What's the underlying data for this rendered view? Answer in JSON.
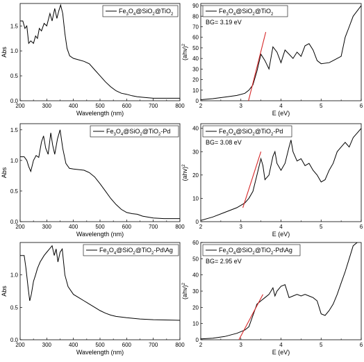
{
  "chart_data": [
    {
      "type": "line",
      "panel": "abs-1",
      "xlabel": "Wavelength (nm)",
      "ylabel": "Abs",
      "xlim": [
        200,
        800
      ],
      "ylim": [
        0.0,
        1.95
      ],
      "xticks": [
        200,
        300,
        400,
        500,
        600,
        700,
        800
      ],
      "yticks": [
        0.0,
        0.5,
        1.0,
        1.5
      ],
      "legend_position": "top-right",
      "series": [
        {
          "name": "Fe3O4@SiO2@TiO2",
          "color": "#000000",
          "points": [
            [
              200,
              1.6
            ],
            [
              210,
              1.6
            ],
            [
              218,
              1.45
            ],
            [
              225,
              1.5
            ],
            [
              232,
              1.15
            ],
            [
              240,
              1.2
            ],
            [
              250,
              1.15
            ],
            [
              258,
              1.3
            ],
            [
              265,
              1.25
            ],
            [
              272,
              1.45
            ],
            [
              280,
              1.4
            ],
            [
              290,
              1.55
            ],
            [
              300,
              1.5
            ],
            [
              312,
              1.75
            ],
            [
              320,
              1.6
            ],
            [
              330,
              1.85
            ],
            [
              338,
              1.65
            ],
            [
              345,
              1.8
            ],
            [
              352,
              1.92
            ],
            [
              360,
              1.75
            ],
            [
              368,
              1.35
            ],
            [
              376,
              1.05
            ],
            [
              386,
              0.9
            ],
            [
              400,
              0.85
            ],
            [
              420,
              0.82
            ],
            [
              440,
              0.79
            ],
            [
              460,
              0.74
            ],
            [
              480,
              0.62
            ],
            [
              500,
              0.5
            ],
            [
              520,
              0.38
            ],
            [
              540,
              0.28
            ],
            [
              560,
              0.2
            ],
            [
              580,
              0.15
            ],
            [
              600,
              0.13
            ],
            [
              620,
              0.1
            ],
            [
              640,
              0.08
            ],
            [
              660,
              0.07
            ],
            [
              700,
              0.05
            ],
            [
              740,
              0.05
            ],
            [
              800,
              0.05
            ]
          ]
        }
      ]
    },
    {
      "type": "line",
      "panel": "tauc-1",
      "xlabel": "E (eV)",
      "ylabel": "(ahv)",
      "ylabel_sup": "2",
      "xlim": [
        2,
        6
      ],
      "ylim": [
        0,
        92
      ],
      "xticks": [
        2,
        3,
        4,
        5,
        6
      ],
      "yticks": [
        0,
        10,
        20,
        30,
        40,
        50,
        60,
        70,
        80,
        90
      ],
      "annotation": "BG= 3.19 eV",
      "legend_position": "top-left",
      "series": [
        {
          "name": "Fe3O4@SiO2@TiO2",
          "color": "#000000",
          "points": [
            [
              2.0,
              1
            ],
            [
              2.3,
              2
            ],
            [
              2.6,
              3.5
            ],
            [
              2.9,
              5
            ],
            [
              3.1,
              7
            ],
            [
              3.2,
              10
            ],
            [
              3.3,
              15
            ],
            [
              3.4,
              28
            ],
            [
              3.5,
              44
            ],
            [
              3.6,
              38
            ],
            [
              3.7,
              30
            ],
            [
              3.8,
              51
            ],
            [
              3.9,
              46
            ],
            [
              4.0,
              36
            ],
            [
              4.1,
              48
            ],
            [
              4.2,
              44
            ],
            [
              4.3,
              40
            ],
            [
              4.4,
              46
            ],
            [
              4.5,
              42
            ],
            [
              4.6,
              52
            ],
            [
              4.7,
              54
            ],
            [
              4.8,
              48
            ],
            [
              4.9,
              38
            ],
            [
              5.0,
              35
            ],
            [
              5.2,
              36
            ],
            [
              5.3,
              38
            ],
            [
              5.5,
              42
            ],
            [
              5.6,
              60
            ],
            [
              5.7,
              70
            ],
            [
              5.8,
              80
            ],
            [
              5.9,
              85
            ],
            [
              6.0,
              90
            ]
          ]
        },
        {
          "name": "fit",
          "color": "#d62728",
          "points": [
            [
              3.19,
              0
            ],
            [
              3.62,
              65
            ]
          ]
        }
      ]
    },
    {
      "type": "line",
      "panel": "abs-2",
      "xlabel": "Wavelength (nm)",
      "ylabel": "Abs",
      "xlim": [
        200,
        800
      ],
      "ylim": [
        0.0,
        1.6
      ],
      "xticks": [
        200,
        300,
        400,
        500,
        600,
        700,
        800
      ],
      "yticks": [
        0.0,
        0.5,
        1.0,
        1.5
      ],
      "legend_position": "top-right",
      "series": [
        {
          "name": "Fe3O4@SiO2@TiO2-Pd",
          "color": "#000000",
          "points": [
            [
              200,
              1.06
            ],
            [
              215,
              1.06
            ],
            [
              225,
              1.0
            ],
            [
              232,
              0.9
            ],
            [
              240,
              0.82
            ],
            [
              250,
              1.0
            ],
            [
              260,
              1.08
            ],
            [
              270,
              1.05
            ],
            [
              280,
              1.3
            ],
            [
              288,
              1.4
            ],
            [
              296,
              1.2
            ],
            [
              305,
              1.1
            ],
            [
              315,
              1.45
            ],
            [
              322,
              1.25
            ],
            [
              330,
              1.1
            ],
            [
              340,
              1.35
            ],
            [
              350,
              1.5
            ],
            [
              360,
              1.2
            ],
            [
              372,
              0.95
            ],
            [
              385,
              0.87
            ],
            [
              400,
              0.86
            ],
            [
              420,
              0.85
            ],
            [
              440,
              0.84
            ],
            [
              460,
              0.8
            ],
            [
              480,
              0.73
            ],
            [
              500,
              0.62
            ],
            [
              520,
              0.5
            ],
            [
              540,
              0.38
            ],
            [
              560,
              0.28
            ],
            [
              580,
              0.2
            ],
            [
              600,
              0.15
            ],
            [
              620,
              0.13
            ],
            [
              640,
              0.12
            ],
            [
              660,
              0.09
            ],
            [
              700,
              0.06
            ],
            [
              740,
              0.05
            ],
            [
              800,
              0.05
            ]
          ]
        }
      ]
    },
    {
      "type": "line",
      "panel": "tauc-2",
      "xlabel": "E (eV)",
      "ylabel": "(ahv)",
      "ylabel_sup": "2",
      "xlim": [
        2,
        6
      ],
      "ylim": [
        0,
        42
      ],
      "xticks": [
        2,
        3,
        4,
        5,
        6
      ],
      "yticks": [
        0,
        10,
        20,
        30,
        40
      ],
      "annotation": "BG= 3.08 eV",
      "legend_position": "top-left",
      "series": [
        {
          "name": "Fe3O4@SiO2@TiO2-Pd",
          "color": "#000000",
          "points": [
            [
              2.0,
              0.5
            ],
            [
              2.3,
              2
            ],
            [
              2.6,
              4
            ],
            [
              2.9,
              6
            ],
            [
              3.1,
              8
            ],
            [
              3.2,
              10
            ],
            [
              3.3,
              13
            ],
            [
              3.4,
              20
            ],
            [
              3.5,
              27
            ],
            [
              3.55,
              24
            ],
            [
              3.6,
              18
            ],
            [
              3.7,
              20
            ],
            [
              3.8,
              28
            ],
            [
              3.85,
              30
            ],
            [
              3.9,
              25
            ],
            [
              4.0,
              22
            ],
            [
              4.1,
              25
            ],
            [
              4.2,
              32
            ],
            [
              4.25,
              35
            ],
            [
              4.3,
              30
            ],
            [
              4.4,
              26
            ],
            [
              4.5,
              27
            ],
            [
              4.6,
              24
            ],
            [
              4.7,
              25
            ],
            [
              4.8,
              22
            ],
            [
              4.9,
              20
            ],
            [
              5.0,
              17
            ],
            [
              5.1,
              18
            ],
            [
              5.2,
              22
            ],
            [
              5.3,
              25
            ],
            [
              5.4,
              30
            ],
            [
              5.5,
              32
            ],
            [
              5.6,
              34
            ],
            [
              5.7,
              32
            ],
            [
              5.8,
              36
            ],
            [
              5.9,
              38
            ],
            [
              6.0,
              40
            ]
          ]
        },
        {
          "name": "fit",
          "color": "#d62728",
          "points": [
            [
              3.05,
              6
            ],
            [
              3.5,
              30
            ]
          ]
        }
      ]
    },
    {
      "type": "line",
      "panel": "abs-3",
      "xlabel": "Wavelength (nm)",
      "ylabel": "Abs",
      "xlim": [
        200,
        800
      ],
      "ylim": [
        0.0,
        1.5
      ],
      "xticks": [
        200,
        300,
        400,
        500,
        600,
        700,
        800
      ],
      "yticks": [
        0.0,
        0.5,
        1.0
      ],
      "legend_position": "top-right",
      "series": [
        {
          "name": "Fe3O4@SiO2@TiO2-Pd\\Ag",
          "color": "#000000",
          "points": [
            [
              200,
              1.3
            ],
            [
              215,
              1.3
            ],
            [
              222,
              1.1
            ],
            [
              230,
              0.8
            ],
            [
              236,
              0.6
            ],
            [
              242,
              0.7
            ],
            [
              250,
              0.9
            ],
            [
              258,
              1.0
            ],
            [
              265,
              1.1
            ],
            [
              275,
              1.2
            ],
            [
              290,
              1.3
            ],
            [
              300,
              1.35
            ],
            [
              310,
              1.4
            ],
            [
              320,
              1.45
            ],
            [
              328,
              1.3
            ],
            [
              335,
              1.4
            ],
            [
              342,
              1.2
            ],
            [
              350,
              1.35
            ],
            [
              358,
              1.4
            ],
            [
              368,
              1.0
            ],
            [
              380,
              0.82
            ],
            [
              400,
              0.7
            ],
            [
              420,
              0.65
            ],
            [
              440,
              0.6
            ],
            [
              460,
              0.55
            ],
            [
              480,
              0.5
            ],
            [
              500,
              0.45
            ],
            [
              520,
              0.41
            ],
            [
              540,
              0.38
            ],
            [
              560,
              0.36
            ],
            [
              600,
              0.34
            ],
            [
              650,
              0.32
            ],
            [
              700,
              0.31
            ],
            [
              800,
              0.3
            ]
          ]
        }
      ]
    },
    {
      "type": "line",
      "panel": "tauc-3",
      "xlabel": "E (eV)",
      "ylabel": "(ahv)",
      "ylabel_sup": "2",
      "xlim": [
        2,
        6
      ],
      "ylim": [
        0,
        60
      ],
      "xticks": [
        2,
        3,
        4,
        5,
        6
      ],
      "yticks": [
        0,
        10,
        20,
        30,
        40,
        50,
        60
      ],
      "annotation": "BG= 2.95 eV",
      "legend_position": "top-left",
      "series": [
        {
          "name": "Fe3O4@SiO2@TiO2-Pd\\Ag",
          "color": "#000000",
          "points": [
            [
              2.0,
              0.5
            ],
            [
              2.3,
              1
            ],
            [
              2.6,
              2
            ],
            [
              2.9,
              4
            ],
            [
              3.1,
              6
            ],
            [
              3.2,
              8
            ],
            [
              3.3,
              15
            ],
            [
              3.4,
              22
            ],
            [
              3.5,
              24
            ],
            [
              3.6,
              26
            ],
            [
              3.7,
              28
            ],
            [
              3.8,
              32
            ],
            [
              3.85,
              27
            ],
            [
              3.9,
              30
            ],
            [
              4.0,
              33
            ],
            [
              4.1,
              34
            ],
            [
              4.2,
              26
            ],
            [
              4.3,
              27
            ],
            [
              4.4,
              28
            ],
            [
              4.5,
              27
            ],
            [
              4.6,
              28
            ],
            [
              4.7,
              27
            ],
            [
              4.8,
              26
            ],
            [
              4.9,
              24
            ],
            [
              5.0,
              16
            ],
            [
              5.1,
              15
            ],
            [
              5.2,
              18
            ],
            [
              5.3,
              22
            ],
            [
              5.4,
              28
            ],
            [
              5.5,
              35
            ],
            [
              5.6,
              42
            ],
            [
              5.7,
              50
            ],
            [
              5.8,
              58
            ],
            [
              5.9,
              60
            ],
            [
              6.0,
              62
            ]
          ]
        },
        {
          "name": "fit",
          "color": "#d62728",
          "points": [
            [
              2.95,
              0
            ],
            [
              3.55,
              28
            ]
          ]
        }
      ]
    }
  ]
}
